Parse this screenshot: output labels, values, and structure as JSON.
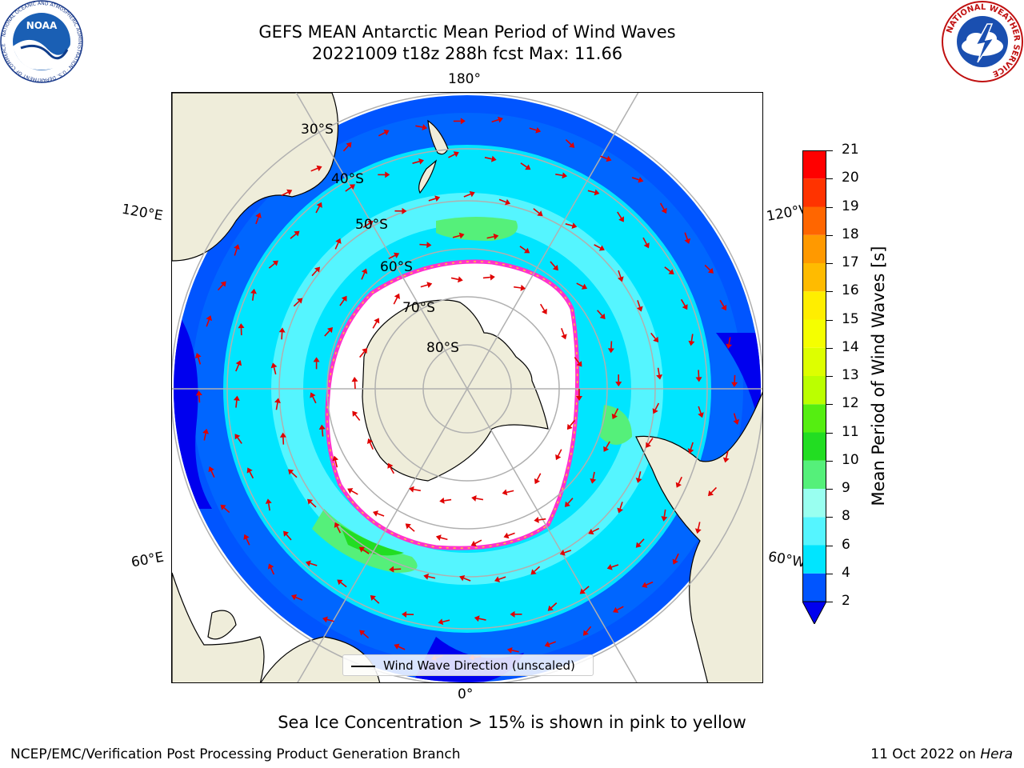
{
  "header": {
    "title_line1": "GEFS MEAN Antarctic Mean Period of Wind Waves",
    "title_line2": "20221009 t18z 288h fcst   Max: 11.66"
  },
  "logos": {
    "noaa": {
      "text": "NOAA",
      "ring_text": "NATIONAL OCEANIC AND ATMOSPHERIC ADMINISTRATION · U.S. DEPARTMENT OF COMMERCE"
    },
    "nws": {
      "ring_text": "NATIONAL WEATHER SERVICE"
    }
  },
  "map": {
    "projection": "south-polar-stereographic",
    "lon_labels": {
      "top": "180°",
      "bottom": "0°",
      "left_upper": "120°E",
      "left_lower": "60°E",
      "right_upper": "120°W",
      "right_lower": "60°W"
    },
    "lat_labels": [
      "30°S",
      "40°S",
      "50°S",
      "60°S",
      "70°S",
      "80°S"
    ],
    "colors": {
      "land": "#efedda",
      "coast": "#000000",
      "grid": "#b0b0b0",
      "arrow": "#e00000",
      "ice_edge": "#ff33cc"
    }
  },
  "legend": {
    "label": "Wind Wave Direction (unscaled)"
  },
  "colorbar": {
    "label": "Mean Period of Wind Waves [s]",
    "ticks": [
      "2",
      "4",
      "6",
      "8",
      "9",
      "10",
      "11",
      "12",
      "13",
      "14",
      "15",
      "16",
      "17",
      "18",
      "19",
      "20",
      "21"
    ],
    "colors": [
      "#0055ff",
      "#00e5ff",
      "#55f5ff",
      "#99fff0",
      "#55f07a",
      "#22dd22",
      "#55ee11",
      "#bbff00",
      "#ddff00",
      "#f5ff00",
      "#ffee00",
      "#ffbb00",
      "#ff9900",
      "#ff6600",
      "#ff3300",
      "#ff0000"
    ],
    "extend_color": "#0000ee"
  },
  "caption": "Sea Ice Concentration > 15% is shown in pink to yellow",
  "footer": {
    "left": "NCEP/EMC/Verification Post Processing Product Generation Branch",
    "right_date": "11 Oct 2022 on ",
    "right_host": "Hera"
  }
}
